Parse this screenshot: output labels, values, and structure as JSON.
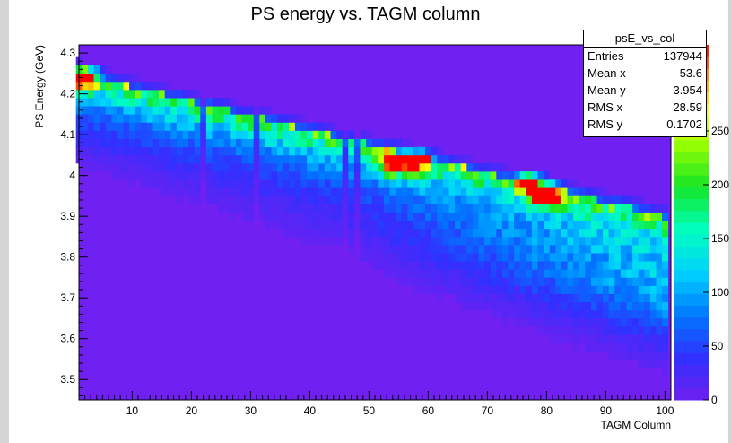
{
  "chart_data": {
    "type": "heatmap",
    "title": "PS energy vs. TAGM column",
    "xlabel": "TAGM Column",
    "ylabel": "PS Energy (GeV)",
    "xlim": [
      1,
      101
    ],
    "ylim": [
      3.45,
      4.32
    ],
    "xticks": [
      10,
      20,
      30,
      40,
      50,
      60,
      70,
      80,
      90,
      100
    ],
    "yticks": [
      3.5,
      3.6,
      3.7,
      3.8,
      3.9,
      4,
      4.1,
      4.2,
      4.3
    ],
    "ytick_labels": [
      "3.5",
      "3.6",
      "3.7",
      "3.8",
      "3.9",
      "4",
      "4.1",
      "4.2",
      "4.3"
    ],
    "zlim": [
      0,
      330
    ],
    "zticks": [
      0,
      50,
      100,
      150,
      200,
      250
    ],
    "ztick_labels": [
      "0",
      "50",
      "100",
      "150",
      "200",
      "250"
    ],
    "stats": {
      "name": "psE_vs_col",
      "rows": [
        {
          "label": "Entries",
          "value": "137944"
        },
        {
          "label": "Mean x",
          "value": "53.6"
        },
        {
          "label": "Mean y",
          "value": "3.954"
        },
        {
          "label": "RMS x",
          "value": "28.59"
        },
        {
          "label": "RMS y",
          "value": "0.1702"
        }
      ]
    },
    "ridge": {
      "x": [
        1,
        100
      ],
      "y": [
        4.25,
        3.9
      ]
    },
    "lower_edge": {
      "x": [
        1,
        100
      ],
      "y": [
        4.02,
        3.47
      ]
    },
    "gap_columns": [
      22,
      31,
      46,
      48
    ],
    "hot_spots": [
      {
        "x": 2,
        "y": 4.24,
        "z": 300
      },
      {
        "x": 54,
        "y": 4.03,
        "z": 290
      },
      {
        "x": 58,
        "y": 4.03,
        "z": 270
      },
      {
        "x": 77,
        "y": 3.98,
        "z": 300
      },
      {
        "x": 80,
        "y": 3.95,
        "z": 320
      }
    ],
    "bin_width_x": 1,
    "bin_width_y": 0.02
  }
}
